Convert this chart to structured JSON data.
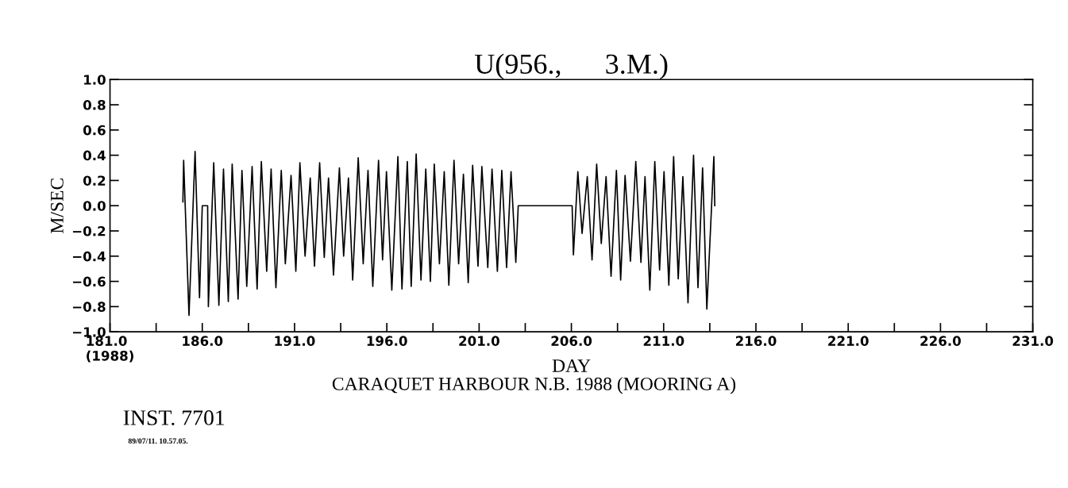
{
  "chart_data": {
    "type": "line",
    "title": "U(956.,      3.M.)",
    "xlabel": "DAY",
    "ylabel": "M/SEC",
    "annotations": [
      "CARAQUET HARBOUR N.B. 1988 (MOORING A)",
      "INST. 7701",
      "89/07/11. 10.57.05."
    ],
    "series": [
      {
        "color": "#000000",
        "x": [
          184.95,
          184.99,
          185.28,
          185.61,
          185.85,
          186.0,
          186.29,
          186.33,
          186.62,
          186.9,
          187.15,
          187.41,
          187.62,
          187.94,
          188.15,
          188.41,
          188.7,
          188.97,
          189.2,
          189.49,
          189.73,
          189.99,
          190.28,
          190.5,
          190.81,
          191.07,
          191.29,
          191.57,
          191.85,
          192.08,
          192.36,
          192.61,
          192.84,
          193.11,
          193.43,
          193.66,
          193.92,
          194.15,
          194.45,
          194.72,
          194.98,
          195.24,
          195.55,
          195.77,
          195.98,
          196.27,
          196.6,
          196.82,
          197.11,
          197.32,
          197.59,
          197.85,
          198.11,
          198.36,
          198.57,
          198.85,
          199.11,
          199.36,
          199.64,
          199.89,
          200.15,
          200.41,
          200.65,
          200.94,
          201.15,
          201.47,
          201.7,
          201.99,
          202.23,
          202.49,
          202.73,
          202.99,
          203.12,
          206.04,
          206.11,
          206.35,
          206.58,
          206.86,
          207.12,
          207.37,
          207.62,
          207.88,
          208.15,
          208.44,
          208.67,
          208.91,
          209.2,
          209.49,
          209.77,
          209.99,
          210.25,
          210.52,
          210.78,
          211.02,
          211.28,
          211.54,
          211.79,
          212.04,
          212.32,
          212.62,
          212.86,
          213.11,
          213.34,
          213.72,
          213.77
        ],
        "values": [
          0.03,
          0.36,
          -0.87,
          0.43,
          -0.73,
          0.0,
          0.0,
          -0.8,
          0.34,
          -0.79,
          0.29,
          -0.76,
          0.33,
          -0.74,
          0.28,
          -0.64,
          0.31,
          -0.66,
          0.35,
          -0.52,
          0.29,
          -0.65,
          0.28,
          -0.46,
          0.24,
          -0.52,
          0.34,
          -0.4,
          0.22,
          -0.48,
          0.34,
          -0.41,
          0.22,
          -0.55,
          0.3,
          -0.4,
          0.22,
          -0.59,
          0.38,
          -0.46,
          0.28,
          -0.64,
          0.36,
          -0.43,
          0.27,
          -0.67,
          0.39,
          -0.66,
          0.35,
          -0.64,
          0.41,
          -0.59,
          0.29,
          -0.6,
          0.33,
          -0.46,
          0.27,
          -0.63,
          0.36,
          -0.46,
          0.25,
          -0.61,
          0.32,
          -0.48,
          0.31,
          -0.49,
          0.29,
          -0.52,
          0.28,
          -0.49,
          0.27,
          -0.45,
          0.0,
          0.0,
          -0.39,
          0.27,
          -0.22,
          0.23,
          -0.43,
          0.33,
          -0.3,
          0.23,
          -0.56,
          0.28,
          -0.59,
          0.24,
          -0.44,
          0.35,
          -0.45,
          0.23,
          -0.67,
          0.35,
          -0.51,
          0.27,
          -0.63,
          0.39,
          -0.58,
          0.23,
          -0.77,
          0.4,
          -0.65,
          0.3,
          -0.82,
          0.39,
          0.0
        ]
      }
    ],
    "xlim": [
      181,
      231
    ],
    "xticks": [
      {
        "value": 181,
        "label": "181.0\n(1988)"
      },
      {
        "value": 183.5,
        "label": null
      },
      {
        "value": 186,
        "label": "186.0"
      },
      {
        "value": 188.5,
        "label": null
      },
      {
        "value": 191,
        "label": "191.0"
      },
      {
        "value": 193.5,
        "label": null
      },
      {
        "value": 196,
        "label": "196.0"
      },
      {
        "value": 198.5,
        "label": null
      },
      {
        "value": 201,
        "label": "201.0"
      },
      {
        "value": 203.5,
        "label": null
      },
      {
        "value": 206,
        "label": "206.0"
      },
      {
        "value": 208.5,
        "label": null
      },
      {
        "value": 211,
        "label": "211.0"
      },
      {
        "value": 213.5,
        "label": null
      },
      {
        "value": 216,
        "label": "216.0"
      },
      {
        "value": 218.5,
        "label": null
      },
      {
        "value": 221,
        "label": "221.0"
      },
      {
        "value": 223.5,
        "label": null
      },
      {
        "value": 226,
        "label": "226.0"
      },
      {
        "value": 228.5,
        "label": null
      },
      {
        "value": 231,
        "label": "231.0"
      }
    ],
    "ylim": [
      -1.0,
      1.0
    ],
    "yticks": [
      {
        "value": -1.0,
        "label": "−1.0"
      },
      {
        "value": -0.8,
        "label": "−0.8"
      },
      {
        "value": -0.6,
        "label": "−0.6"
      },
      {
        "value": -0.4,
        "label": "−0.4"
      },
      {
        "value": -0.2,
        "label": "−0.2"
      },
      {
        "value": 0.0,
        "label": "0.0"
      },
      {
        "value": 0.2,
        "label": "0.2"
      },
      {
        "value": 0.4,
        "label": "0.4"
      },
      {
        "value": 0.6,
        "label": "0.6"
      },
      {
        "value": 0.8,
        "label": "0.8"
      },
      {
        "value": 1.0,
        "label": "1.0"
      }
    ],
    "grid": false,
    "legend": false
  }
}
